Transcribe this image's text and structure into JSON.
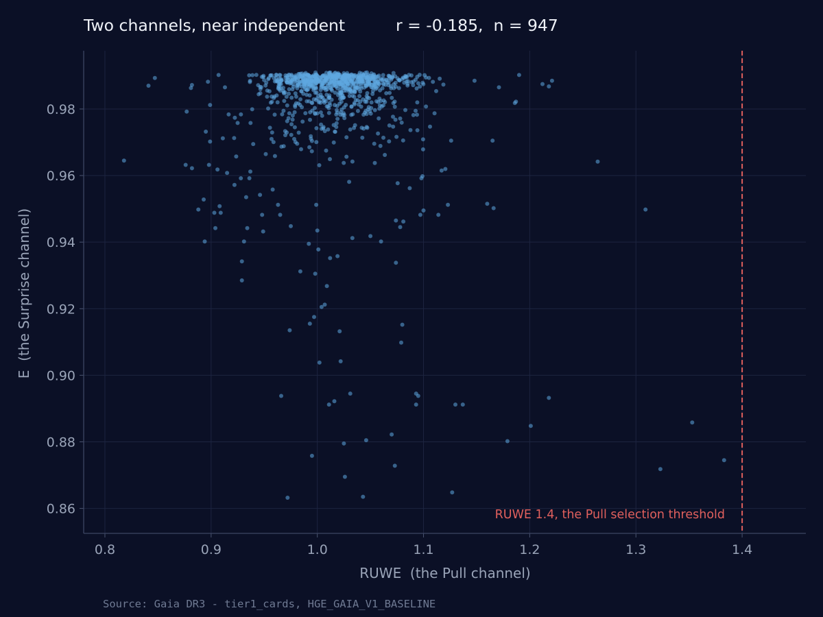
{
  "chart_data": {
    "type": "scatter",
    "title": "Two channels, near independent",
    "stats_label": "r = -0.185,  n = 947",
    "xlabel": "RUWE  (the Pull channel)",
    "ylabel": "E  (the Surprise channel)",
    "xlim": [
      0.78,
      1.46
    ],
    "ylim": [
      0.8525,
      0.9975
    ],
    "x_ticks": [
      "0.8",
      "0.9",
      "1.0",
      "1.1",
      "1.2",
      "1.3",
      "1.4"
    ],
    "y_ticks": [
      "0.86",
      "0.88",
      "0.90",
      "0.92",
      "0.94",
      "0.96",
      "0.98"
    ],
    "grid": true,
    "point_color": "#5fa8e0",
    "threshold": {
      "x": 1.4,
      "label": "RUWE 1.4, the Pull selection threshold",
      "color": "#e0605d"
    },
    "outlier_points": [
      [
        0.818,
        0.9645
      ],
      [
        0.841,
        0.987
      ],
      [
        0.847,
        0.9893
      ],
      [
        0.877,
        0.9792
      ],
      [
        0.876,
        0.9632
      ],
      [
        0.882,
        0.9622
      ],
      [
        0.881,
        0.9863
      ],
      [
        0.882,
        0.9872
      ],
      [
        0.888,
        0.9498
      ],
      [
        0.893,
        0.9528
      ],
      [
        0.894,
        0.9402
      ],
      [
        0.895,
        0.9732
      ],
      [
        0.897,
        0.9882
      ],
      [
        0.898,
        0.9632
      ],
      [
        0.899,
        0.9702
      ],
      [
        0.899,
        0.9812
      ],
      [
        0.903,
        0.9488
      ],
      [
        0.904,
        0.9442
      ],
      [
        0.906,
        0.9618
      ],
      [
        0.907,
        0.9902
      ],
      [
        0.908,
        0.9508
      ],
      [
        0.909,
        0.9488
      ],
      [
        0.911,
        0.9712
      ],
      [
        0.913,
        0.9865
      ],
      [
        0.915,
        0.9608
      ],
      [
        0.922,
        0.9572
      ],
      [
        0.925,
        0.9758
      ],
      [
        0.928,
        0.9592
      ],
      [
        0.929,
        0.9342
      ],
      [
        0.929,
        0.9285
      ],
      [
        0.931,
        0.9402
      ],
      [
        0.933,
        0.9535
      ],
      [
        0.936,
        0.9592
      ],
      [
        0.934,
        0.9442
      ],
      [
        0.946,
        0.9542
      ],
      [
        0.948,
        0.9482
      ],
      [
        0.949,
        0.9432
      ],
      [
        0.958,
        0.9558
      ],
      [
        0.963,
        0.9512
      ],
      [
        0.965,
        0.9482
      ],
      [
        0.966,
        0.8938
      ],
      [
        0.972,
        0.8632
      ],
      [
        0.974,
        0.9135
      ],
      [
        0.975,
        0.9448
      ],
      [
        0.984,
        0.9312
      ],
      [
        0.992,
        0.9395
      ],
      [
        0.993,
        0.9155
      ],
      [
        0.995,
        0.8758
      ],
      [
        0.997,
        0.9175
      ],
      [
        0.998,
        0.9305
      ],
      [
        0.999,
        0.9512
      ],
      [
        1.0,
        0.9435
      ],
      [
        1.001,
        0.9378
      ],
      [
        1.002,
        0.9038
      ],
      [
        1.004,
        0.9205
      ],
      [
        1.007,
        0.9212
      ],
      [
        1.009,
        0.9268
      ],
      [
        1.012,
        0.9352
      ],
      [
        1.011,
        0.8912
      ],
      [
        1.016,
        0.8922
      ],
      [
        1.019,
        0.9358
      ],
      [
        1.021,
        0.9132
      ],
      [
        1.022,
        0.9042
      ],
      [
        1.025,
        0.8795
      ],
      [
        1.026,
        0.8695
      ],
      [
        1.031,
        0.8945
      ],
      [
        1.033,
        0.9412
      ],
      [
        1.043,
        0.8635
      ],
      [
        1.046,
        0.8805
      ],
      [
        1.05,
        0.9418
      ],
      [
        1.06,
        0.9402
      ],
      [
        1.07,
        0.8822
      ],
      [
        1.073,
        0.8728
      ],
      [
        1.074,
        0.9338
      ],
      [
        1.074,
        0.9465
      ],
      [
        1.078,
        0.9445
      ],
      [
        1.079,
        0.9098
      ],
      [
        1.08,
        0.9152
      ],
      [
        1.081,
        0.9462
      ],
      [
        1.087,
        0.9562
      ],
      [
        1.093,
        0.8912
      ],
      [
        1.093,
        0.8945
      ],
      [
        1.095,
        0.8938
      ],
      [
        1.097,
        0.9482
      ],
      [
        1.098,
        0.9592
      ],
      [
        1.099,
        0.9598
      ],
      [
        1.1,
        0.9495
      ],
      [
        1.114,
        0.9482
      ],
      [
        1.117,
        0.9615
      ],
      [
        1.123,
        0.9512
      ],
      [
        1.126,
        0.9705
      ],
      [
        1.127,
        0.8648
      ],
      [
        1.13,
        0.8912
      ],
      [
        1.137,
        0.8912
      ],
      [
        1.148,
        0.9885
      ],
      [
        1.16,
        0.9515
      ],
      [
        1.165,
        0.9705
      ],
      [
        1.166,
        0.9502
      ],
      [
        1.171,
        0.9865
      ],
      [
        1.179,
        0.8802
      ],
      [
        1.186,
        0.9818
      ],
      [
        1.187,
        0.9822
      ],
      [
        1.19,
        0.9902
      ],
      [
        1.201,
        0.8848
      ],
      [
        1.212,
        0.9875
      ],
      [
        1.218,
        0.9868
      ],
      [
        1.218,
        0.8932
      ],
      [
        1.221,
        0.9885
      ],
      [
        1.264,
        0.9642
      ],
      [
        1.309,
        0.9498
      ],
      [
        1.323,
        0.8718
      ],
      [
        1.353,
        0.8858
      ],
      [
        1.383,
        0.8745
      ]
    ]
  },
  "footer": {
    "source": "Source: Gaia DR3 - tier1_cards, HGE_GAIA_V1_BASELINE"
  }
}
